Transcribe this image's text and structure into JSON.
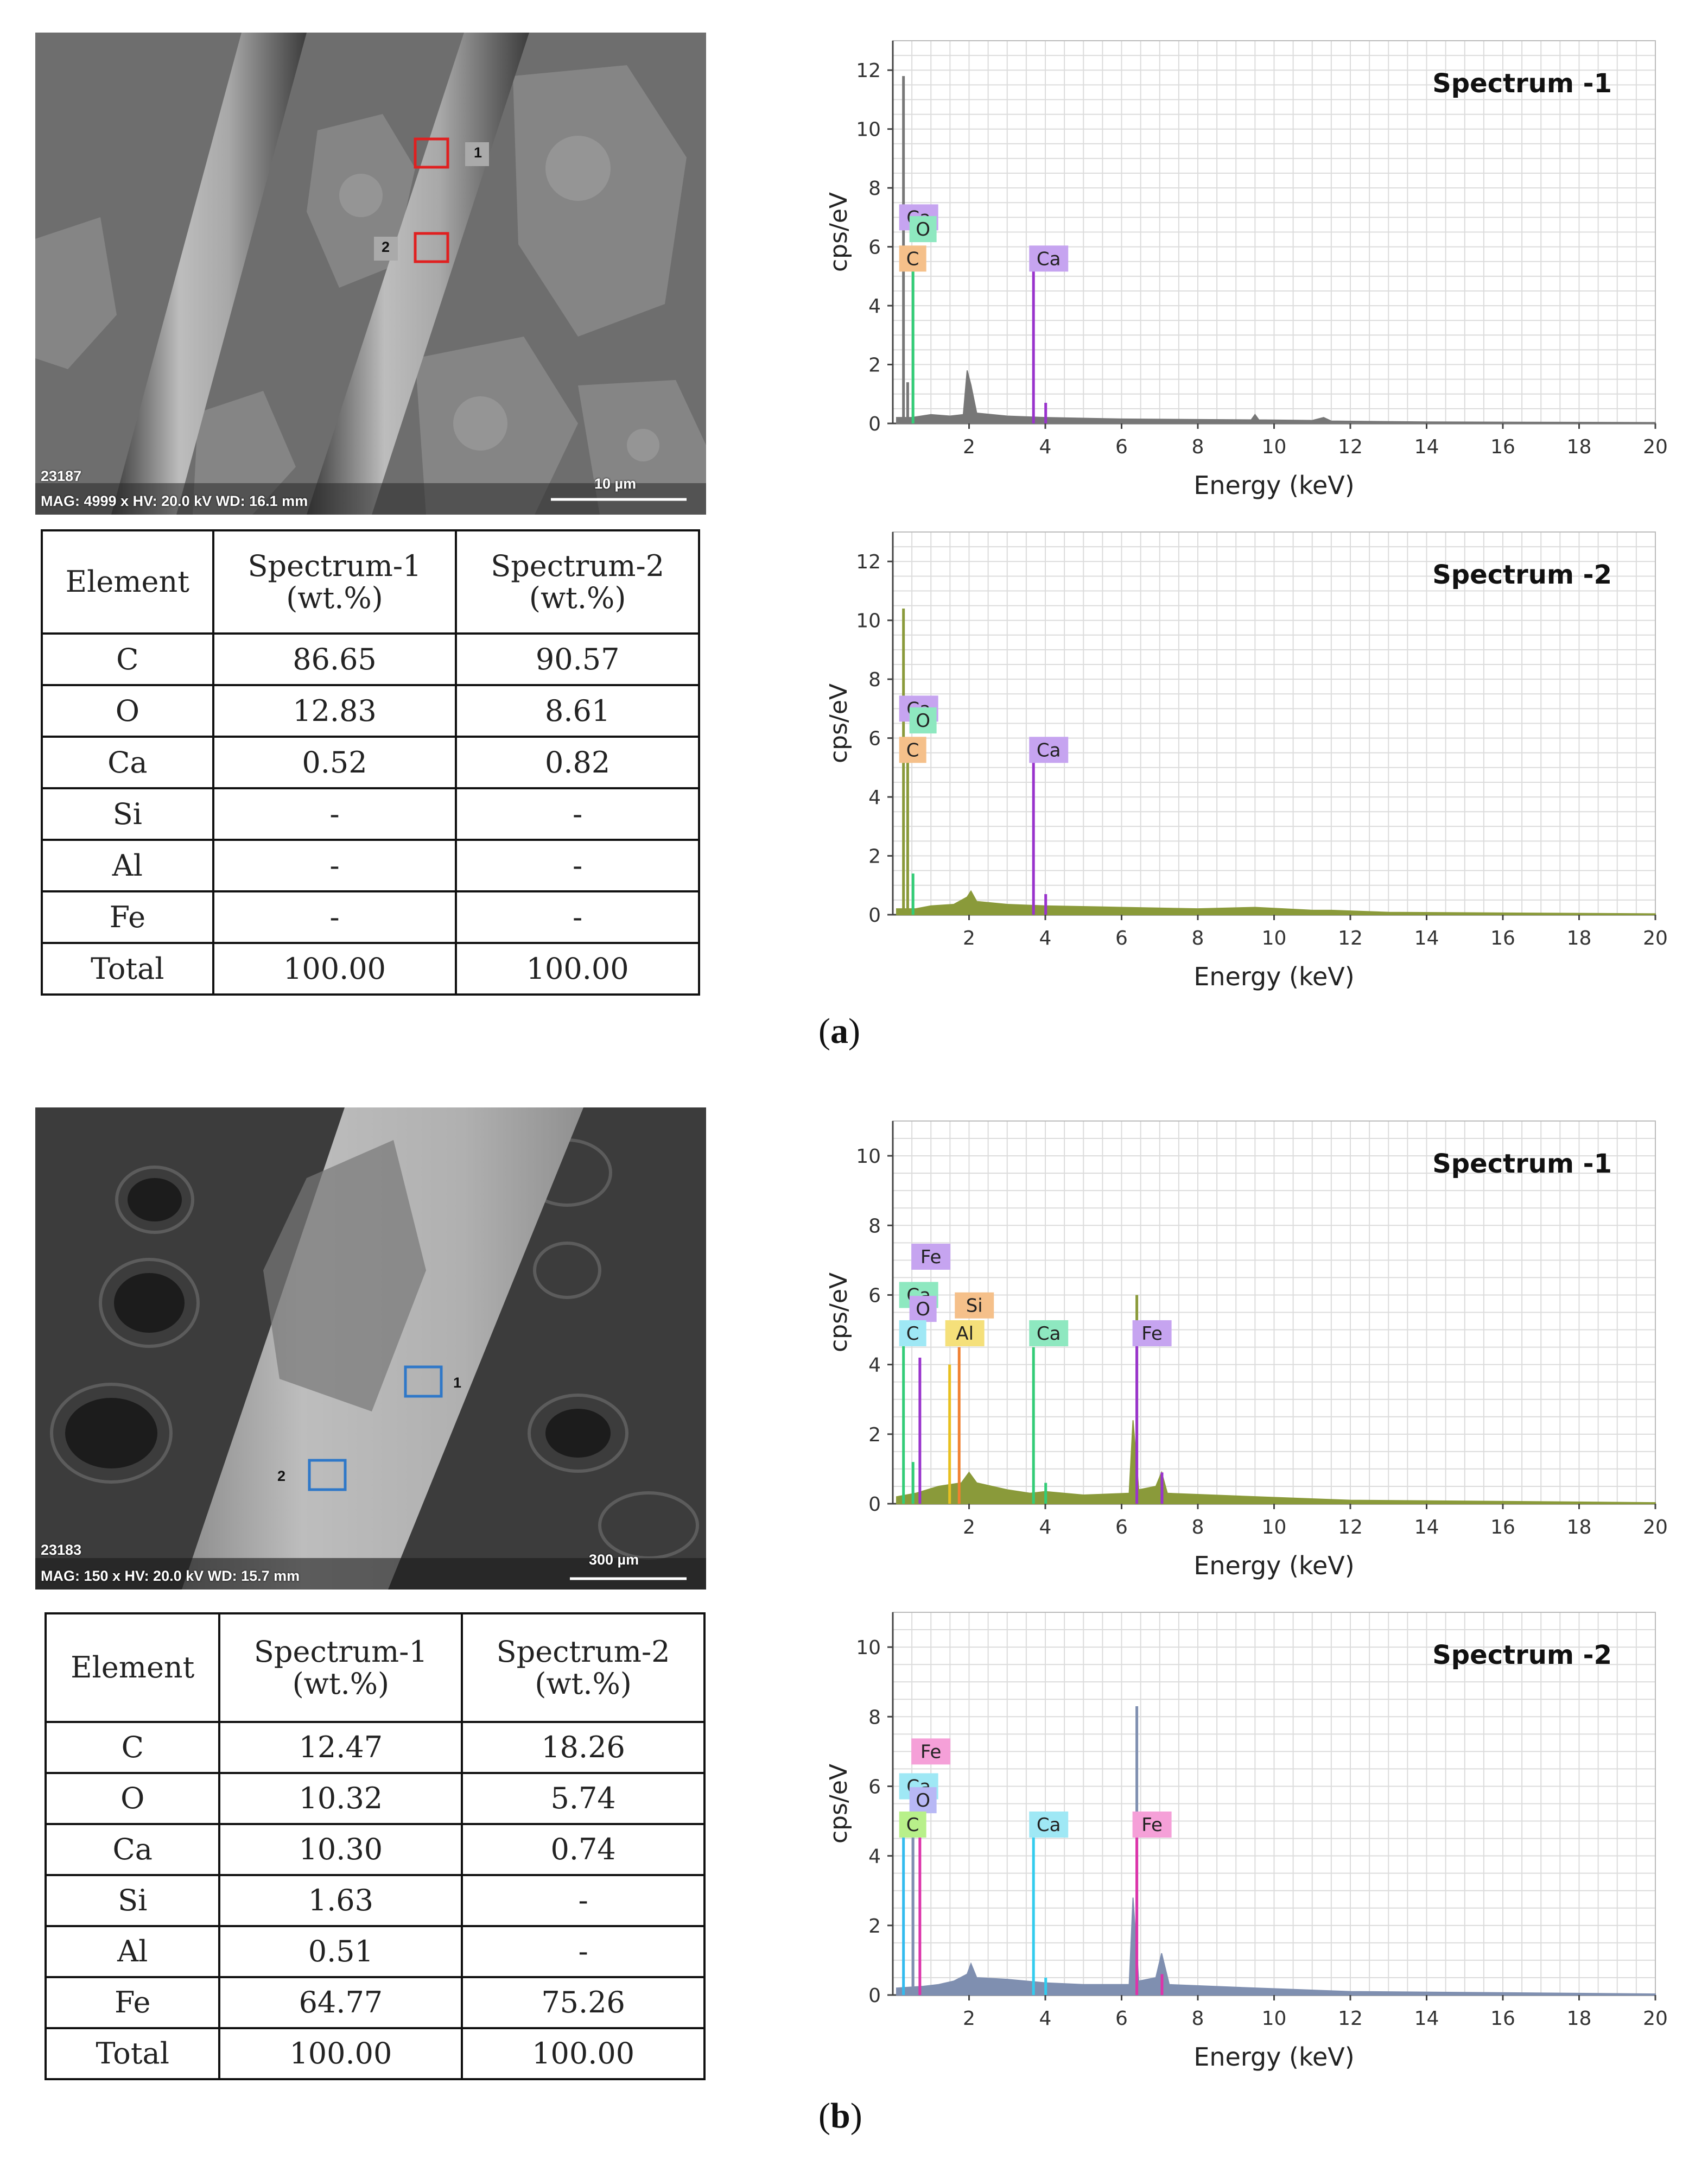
{
  "panels": [
    {
      "id": "a",
      "caption": "a",
      "sem": {
        "id_text": "23187",
        "info_text": "MAG: 4999 x  HV: 20.0 kV  WD: 16.1 mm",
        "scale_label": "10 µm",
        "box_color": "#e02020",
        "markers": [
          "1",
          "2"
        ]
      },
      "table": {
        "headers": [
          [
            "Element"
          ],
          [
            "Spectrum-1",
            "(wt.%)"
          ],
          [
            "Spectrum-2",
            "(wt.%)"
          ]
        ],
        "rows": [
          [
            "C",
            "86.65",
            "90.57"
          ],
          [
            "O",
            "12.83",
            "8.61"
          ],
          [
            "Ca",
            "0.52",
            "0.82"
          ],
          [
            "Si",
            "-",
            "-"
          ],
          [
            "Al",
            "-",
            "-"
          ],
          [
            "Fe",
            "-",
            "-"
          ],
          [
            "Total",
            "100.00",
            "100.00"
          ]
        ]
      },
      "charts": [
        {
          "type": "line",
          "title": "Spectrum -1",
          "xlabel": "Energy (keV)",
          "ylabel": "cps/eV",
          "xlim": [
            0,
            20
          ],
          "ylim": [
            0,
            13
          ],
          "xticks": [
            2,
            4,
            6,
            8,
            10,
            12,
            14,
            16,
            18,
            20
          ],
          "yticks": [
            0,
            2,
            4,
            6,
            8,
            10,
            12
          ],
          "grid": true,
          "fill_color": "#777777",
          "baseline": [
            [
              0.1,
              0.2
            ],
            [
              0.5,
              0.2
            ],
            [
              1.0,
              0.3
            ],
            [
              1.5,
              0.25
            ],
            [
              1.85,
              0.3
            ],
            [
              1.95,
              1.8
            ],
            [
              2.05,
              1.3
            ],
            [
              2.2,
              0.35
            ],
            [
              3,
              0.25
            ],
            [
              4,
              0.2
            ],
            [
              6,
              0.15
            ],
            [
              9.4,
              0.12
            ],
            [
              9.5,
              0.3
            ],
            [
              9.6,
              0.12
            ],
            [
              11,
              0.1
            ],
            [
              11.3,
              0.2
            ],
            [
              11.5,
              0.08
            ],
            [
              14,
              0.05
            ],
            [
              20,
              0.03
            ]
          ],
          "spikes": [
            {
              "x": 0.28,
              "y": 11.8,
              "color": "#777777"
            },
            {
              "x": 0.39,
              "y": 1.4,
              "color": "#777777"
            },
            {
              "x": 0.53,
              "y": 5.2,
              "color": "#33cc77"
            },
            {
              "x": 3.69,
              "y": 5.2,
              "color": "#9933cc"
            },
            {
              "x": 4.01,
              "y": 0.7,
              "color": "#9933cc"
            }
          ],
          "element_labels": [
            {
              "text": "Ca",
              "x": 0.28,
              "y": 7.0,
              "color": "#c6a4f0"
            },
            {
              "text": "O",
              "x": 0.55,
              "y": 6.6,
              "color": "#8ee8c0"
            },
            {
              "text": "C",
              "x": 0.28,
              "y": 5.6,
              "color": "#f5c08a"
            },
            {
              "text": "Ca",
              "x": 3.69,
              "y": 5.6,
              "color": "#c6a4f0"
            }
          ]
        },
        {
          "type": "line",
          "title": "Spectrum -2",
          "xlabel": "Energy (keV)",
          "ylabel": "cps/eV",
          "xlim": [
            0,
            20
          ],
          "ylim": [
            0,
            13
          ],
          "xticks": [
            2,
            4,
            6,
            8,
            10,
            12,
            14,
            16,
            18,
            20
          ],
          "yticks": [
            0,
            2,
            4,
            6,
            8,
            10,
            12
          ],
          "grid": true,
          "fill_color": "#8a9a3a",
          "baseline": [
            [
              0.1,
              0.2
            ],
            [
              0.6,
              0.2
            ],
            [
              1.0,
              0.3
            ],
            [
              1.6,
              0.35
            ],
            [
              1.95,
              0.6
            ],
            [
              2.05,
              0.8
            ],
            [
              2.2,
              0.45
            ],
            [
              3,
              0.35
            ],
            [
              4,
              0.3
            ],
            [
              6,
              0.25
            ],
            [
              8,
              0.2
            ],
            [
              9.5,
              0.25
            ],
            [
              11,
              0.15
            ],
            [
              11.5,
              0.15
            ],
            [
              13,
              0.08
            ],
            [
              20,
              0.03
            ]
          ],
          "spikes": [
            {
              "x": 0.28,
              "y": 10.4,
              "color": "#8a9a3a"
            },
            {
              "x": 0.39,
              "y": 5.6,
              "color": "#8a9a3a"
            },
            {
              "x": 0.53,
              "y": 1.4,
              "color": "#33cc77"
            },
            {
              "x": 3.69,
              "y": 5.3,
              "color": "#9933cc"
            },
            {
              "x": 4.01,
              "y": 0.7,
              "color": "#9933cc"
            }
          ],
          "element_labels": [
            {
              "text": "Ca",
              "x": 0.28,
              "y": 7.0,
              "color": "#c6a4f0"
            },
            {
              "text": "O",
              "x": 0.55,
              "y": 6.6,
              "color": "#8ee8c0"
            },
            {
              "text": "C",
              "x": 0.28,
              "y": 5.6,
              "color": "#f5c08a"
            },
            {
              "text": "Ca",
              "x": 3.69,
              "y": 5.6,
              "color": "#c6a4f0"
            }
          ]
        }
      ]
    },
    {
      "id": "b",
      "caption": "b",
      "sem": {
        "id_text": "23183",
        "info_text": "MAG: 150 x  HV: 20.0 kV  WD: 15.7 mm",
        "scale_label": "300 µm",
        "box_color": "#2f78c8",
        "markers": [
          "1",
          "2"
        ]
      },
      "table": {
        "headers": [
          [
            "Element"
          ],
          [
            "Spectrum-1",
            "(wt.%)"
          ],
          [
            "Spectrum-2",
            "(wt.%)"
          ]
        ],
        "rows": [
          [
            "C",
            "12.47",
            "18.26"
          ],
          [
            "O",
            "10.32",
            "5.74"
          ],
          [
            "Ca",
            "10.30",
            "0.74"
          ],
          [
            "Si",
            "1.63",
            "-"
          ],
          [
            "Al",
            "0.51",
            "-"
          ],
          [
            "Fe",
            "64.77",
            "75.26"
          ],
          [
            "Total",
            "100.00",
            "100.00"
          ]
        ]
      },
      "charts": [
        {
          "type": "line",
          "title": "Spectrum -1",
          "xlabel": "Energy (keV)",
          "ylabel": "cps/eV",
          "xlim": [
            0,
            20
          ],
          "ylim": [
            0,
            11
          ],
          "xticks": [
            2,
            4,
            6,
            8,
            10,
            12,
            14,
            16,
            18,
            20
          ],
          "yticks": [
            0,
            2,
            4,
            6,
            8,
            10
          ],
          "grid": true,
          "fill_color": "#8a9a3a",
          "baseline": [
            [
              0.1,
              0.2
            ],
            [
              0.6,
              0.3
            ],
            [
              1.2,
              0.5
            ],
            [
              1.8,
              0.6
            ],
            [
              2.0,
              0.9
            ],
            [
              2.2,
              0.6
            ],
            [
              3,
              0.4
            ],
            [
              3.6,
              0.3
            ],
            [
              4.0,
              0.35
            ],
            [
              5,
              0.25
            ],
            [
              6.2,
              0.3
            ],
            [
              6.3,
              2.4
            ],
            [
              6.45,
              0.4
            ],
            [
              6.9,
              0.5
            ],
            [
              7.05,
              0.9
            ],
            [
              7.2,
              0.3
            ],
            [
              9.5,
              0.2
            ],
            [
              12,
              0.1
            ],
            [
              20,
              0.03
            ]
          ],
          "spikes": [
            {
              "x": 0.28,
              "y": 4.6,
              "color": "#33cc77"
            },
            {
              "x": 0.53,
              "y": 1.2,
              "color": "#33cc77"
            },
            {
              "x": 0.71,
              "y": 4.2,
              "color": "#9933cc"
            },
            {
              "x": 1.49,
              "y": 4.0,
              "color": "#e8c020"
            },
            {
              "x": 1.74,
              "y": 4.5,
              "color": "#f08030"
            },
            {
              "x": 3.69,
              "y": 4.5,
              "color": "#33cc77"
            },
            {
              "x": 4.01,
              "y": 0.6,
              "color": "#33cc77"
            },
            {
              "x": 6.4,
              "y": 6.0,
              "color": "#8a9a3a"
            },
            {
              "x": 6.4,
              "y": 4.6,
              "color": "#9933cc"
            },
            {
              "x": 7.06,
              "y": 0.9,
              "color": "#9933cc"
            }
          ],
          "element_labels": [
            {
              "text": "Fe",
              "x": 0.6,
              "y": 7.1,
              "color": "#c6a4f0"
            },
            {
              "text": "Ca",
              "x": 0.28,
              "y": 6.0,
              "color": "#8ee8c0"
            },
            {
              "text": "O",
              "x": 0.55,
              "y": 5.6,
              "color": "#c6a4f0"
            },
            {
              "text": "C",
              "x": 0.28,
              "y": 4.9,
              "color": "#9fe8f5"
            },
            {
              "text": "Si",
              "x": 1.74,
              "y": 5.7,
              "color": "#f5c08a"
            },
            {
              "text": "Al",
              "x": 1.49,
              "y": 4.9,
              "color": "#f5e07a"
            },
            {
              "text": "Ca",
              "x": 3.69,
              "y": 4.9,
              "color": "#8ee8c0"
            },
            {
              "text": "Fe",
              "x": 6.4,
              "y": 4.9,
              "color": "#c6a4f0"
            }
          ]
        },
        {
          "type": "line",
          "title": "Spectrum -2",
          "xlabel": "Energy (keV)",
          "ylabel": "cps/eV",
          "xlim": [
            0,
            20
          ],
          "ylim": [
            0,
            11
          ],
          "xticks": [
            2,
            4,
            6,
            8,
            10,
            12,
            14,
            16,
            18,
            20
          ],
          "yticks": [
            0,
            2,
            4,
            6,
            8,
            10
          ],
          "grid": true,
          "fill_color": "#7f8fb0",
          "baseline": [
            [
              0.1,
              0.2
            ],
            [
              0.8,
              0.25
            ],
            [
              1.2,
              0.3
            ],
            [
              1.6,
              0.4
            ],
            [
              1.95,
              0.6
            ],
            [
              2.05,
              0.9
            ],
            [
              2.2,
              0.5
            ],
            [
              3,
              0.45
            ],
            [
              4,
              0.35
            ],
            [
              5,
              0.3
            ],
            [
              6.2,
              0.3
            ],
            [
              6.3,
              2.8
            ],
            [
              6.45,
              0.4
            ],
            [
              6.9,
              0.5
            ],
            [
              7.05,
              1.2
            ],
            [
              7.25,
              0.3
            ],
            [
              9.5,
              0.2
            ],
            [
              12,
              0.1
            ],
            [
              20,
              0.03
            ]
          ],
          "spikes": [
            {
              "x": 0.28,
              "y": 4.8,
              "color": "#33bbee"
            },
            {
              "x": 0.53,
              "y": 5.6,
              "color": "#7f8fb0"
            },
            {
              "x": 0.71,
              "y": 4.6,
              "color": "#dd33aa"
            },
            {
              "x": 3.69,
              "y": 4.6,
              "color": "#33ccee"
            },
            {
              "x": 4.01,
              "y": 0.5,
              "color": "#33ccee"
            },
            {
              "x": 6.4,
              "y": 8.3,
              "color": "#7f8fb0"
            },
            {
              "x": 6.4,
              "y": 4.6,
              "color": "#dd33aa"
            },
            {
              "x": 7.06,
              "y": 0.6,
              "color": "#dd33aa"
            }
          ],
          "element_labels": [
            {
              "text": "Fe",
              "x": 0.6,
              "y": 7.0,
              "color": "#f5a0d8"
            },
            {
              "text": "Ca",
              "x": 0.28,
              "y": 6.0,
              "color": "#9fe8f5"
            },
            {
              "text": "O",
              "x": 0.55,
              "y": 5.6,
              "color": "#b8b8f5"
            },
            {
              "text": "C",
              "x": 0.28,
              "y": 4.9,
              "color": "#b8f08a"
            },
            {
              "text": "Ca",
              "x": 3.69,
              "y": 4.9,
              "color": "#9fe8f5"
            },
            {
              "text": "Fe",
              "x": 6.4,
              "y": 4.9,
              "color": "#f5a0d8"
            }
          ]
        }
      ]
    }
  ]
}
